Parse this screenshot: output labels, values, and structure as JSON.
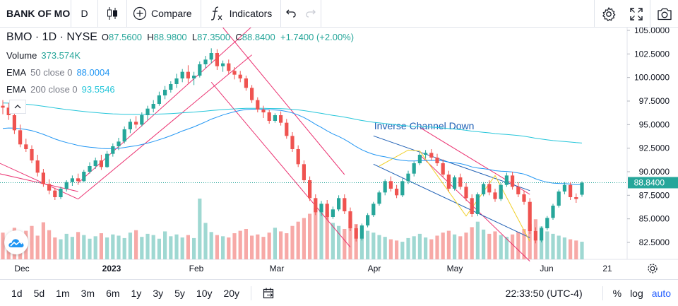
{
  "toolbar": {
    "symbol": "BANK OF MONTREAL",
    "interval": "D",
    "compare_label": "Compare",
    "indicators_label": "Indicators"
  },
  "legend": {
    "title": "BMO · 1D · NYSE",
    "open_label": "O",
    "open": "87.5600",
    "high_label": "H",
    "high": "88.9800",
    "low_label": "L",
    "low": "87.3500",
    "close_label": "C",
    "close": "88.8400",
    "change": "+1.7400 (+2.00%)",
    "volume_label": "Volume",
    "volume": "373.574K",
    "ema50_label": "EMA",
    "ema50_params": "50 close 0",
    "ema50_value": "88.0004",
    "ema200_label": "EMA",
    "ema200_params": "200 close 0",
    "ema200_value": "93.5546"
  },
  "colors": {
    "up": "#26a69a",
    "down": "#ef5350",
    "up_volume": "#9fd8d2",
    "down_volume": "#f7a9a7",
    "ema50": "#2196f3",
    "ema200": "#26c6da",
    "channel": "#e91e63",
    "inverse_channel": "#1e5fb4",
    "pattern": "#f0d02a",
    "accent": "#2962ff"
  },
  "chart_data": {
    "type": "candlestick",
    "y_axis_ticks": [
      "105.0000",
      "102.5000",
      "100.0000",
      "97.5000",
      "95.0000",
      "92.5000",
      "90.0000",
      "87.5000",
      "85.0000",
      "82.5000"
    ],
    "ylim": [
      80.7,
      105.3
    ],
    "last_price_label": "88.8400",
    "last_price": 88.84,
    "x_axis_labels": [
      "Dec",
      "2023",
      "Feb",
      "Mar",
      "Apr",
      "May",
      "Jun",
      "21"
    ],
    "annotation": "Inverse Channel Down",
    "candles": [
      [
        97.0,
        97.6,
        96.1,
        96.8
      ],
      [
        96.8,
        97.3,
        95.5,
        96.0
      ],
      [
        96.0,
        96.4,
        94.0,
        94.4
      ],
      [
        94.4,
        95.0,
        92.6,
        92.9
      ],
      [
        92.9,
        93.5,
        92.1,
        92.4
      ],
      [
        92.4,
        92.8,
        90.9,
        91.2
      ],
      [
        91.2,
        91.8,
        89.5,
        89.9
      ],
      [
        89.9,
        90.3,
        88.4,
        88.7
      ],
      [
        88.7,
        89.2,
        87.6,
        88.0
      ],
      [
        88.0,
        88.3,
        87.0,
        87.3
      ],
      [
        87.3,
        88.4,
        87.1,
        88.2
      ],
      [
        88.2,
        89.1,
        87.9,
        88.9
      ],
      [
        88.9,
        89.6,
        88.5,
        89.3
      ],
      [
        89.3,
        89.8,
        88.6,
        89.0
      ],
      [
        89.0,
        90.2,
        88.9,
        90.0
      ],
      [
        90.0,
        91.0,
        89.8,
        90.6
      ],
      [
        90.6,
        91.5,
        90.3,
        91.2
      ],
      [
        91.2,
        91.8,
        90.2,
        90.5
      ],
      [
        90.5,
        92.2,
        90.4,
        91.9
      ],
      [
        91.9,
        93.0,
        91.6,
        92.7
      ],
      [
        92.7,
        93.6,
        92.3,
        93.2
      ],
      [
        93.2,
        94.8,
        93.0,
        94.5
      ],
      [
        94.5,
        95.6,
        94.1,
        95.3
      ],
      [
        95.3,
        95.9,
        94.6,
        95.0
      ],
      [
        95.0,
        96.3,
        94.8,
        96.0
      ],
      [
        96.0,
        97.0,
        95.5,
        96.7
      ],
      [
        96.7,
        97.6,
        96.3,
        97.2
      ],
      [
        97.2,
        98.5,
        97.0,
        98.1
      ],
      [
        98.1,
        99.1,
        97.7,
        98.7
      ],
      [
        98.7,
        99.6,
        98.4,
        99.3
      ],
      [
        99.3,
        100.4,
        98.9,
        99.9
      ],
      [
        99.9,
        100.9,
        99.5,
        100.6
      ],
      [
        100.6,
        101.3,
        99.4,
        99.9
      ],
      [
        99.9,
        100.6,
        99.2,
        100.2
      ],
      [
        100.2,
        101.7,
        100.0,
        101.4
      ],
      [
        101.4,
        102.3,
        101.0,
        101.9
      ],
      [
        101.9,
        103.1,
        101.5,
        102.6
      ],
      [
        102.6,
        103.0,
        100.8,
        101.2
      ],
      [
        101.2,
        101.8,
        100.6,
        101.5
      ],
      [
        101.5,
        101.9,
        100.4,
        100.7
      ],
      [
        100.7,
        101.1,
        99.8,
        100.3
      ],
      [
        100.3,
        100.7,
        99.5,
        99.9
      ],
      [
        99.9,
        100.2,
        98.6,
        98.9
      ],
      [
        98.9,
        99.2,
        97.3,
        97.6
      ],
      [
        97.6,
        97.9,
        96.3,
        96.6
      ],
      [
        96.6,
        97.0,
        95.7,
        96.3
      ],
      [
        96.3,
        96.6,
        95.1,
        95.4
      ],
      [
        95.4,
        96.2,
        95.2,
        96.0
      ],
      [
        96.0,
        96.4,
        94.9,
        95.2
      ],
      [
        95.2,
        95.6,
        93.5,
        93.8
      ],
      [
        93.8,
        94.2,
        92.1,
        92.4
      ],
      [
        92.4,
        92.8,
        90.5,
        90.8
      ],
      [
        90.8,
        91.2,
        88.8,
        89.1
      ],
      [
        89.1,
        89.5,
        86.9,
        87.2
      ],
      [
        87.2,
        87.6,
        85.4,
        85.7
      ],
      [
        85.7,
        86.9,
        85.3,
        86.6
      ],
      [
        86.6,
        87.0,
        84.9,
        85.2
      ],
      [
        85.2,
        86.3,
        85.0,
        86.0
      ],
      [
        86.0,
        87.5,
        85.8,
        87.2
      ],
      [
        87.2,
        87.6,
        85.5,
        85.8
      ],
      [
        85.8,
        86.2,
        83.7,
        84.0
      ],
      [
        84.0,
        84.4,
        82.6,
        82.9
      ],
      [
        82.9,
        84.5,
        82.7,
        84.3
      ],
      [
        84.3,
        85.6,
        84.1,
        85.4
      ],
      [
        85.4,
        86.8,
        85.2,
        86.6
      ],
      [
        86.6,
        88.0,
        86.4,
        87.8
      ],
      [
        87.8,
        89.2,
        87.5,
        89.0
      ],
      [
        89.0,
        89.5,
        87.9,
        88.2
      ],
      [
        88.2,
        88.6,
        87.2,
        87.5
      ],
      [
        87.5,
        89.3,
        87.3,
        89.0
      ],
      [
        89.0,
        90.1,
        88.7,
        89.8
      ],
      [
        89.8,
        91.1,
        89.5,
        90.9
      ],
      [
        90.9,
        92.0,
        90.7,
        91.8
      ],
      [
        91.8,
        92.3,
        91.4,
        92.0
      ],
      [
        92.0,
        92.4,
        91.2,
        91.5
      ],
      [
        91.5,
        91.9,
        90.6,
        90.9
      ],
      [
        90.9,
        91.3,
        89.4,
        89.7
      ],
      [
        89.7,
        90.1,
        87.9,
        88.2
      ],
      [
        88.2,
        89.6,
        88.0,
        89.4
      ],
      [
        89.4,
        89.8,
        88.1,
        88.4
      ],
      [
        88.4,
        88.8,
        86.9,
        87.2
      ],
      [
        87.2,
        87.6,
        85.2,
        85.5
      ],
      [
        85.5,
        87.8,
        85.3,
        87.6
      ],
      [
        87.6,
        88.9,
        87.4,
        88.7
      ],
      [
        88.7,
        89.1,
        87.5,
        87.8
      ],
      [
        87.8,
        88.2,
        86.8,
        87.1
      ],
      [
        87.1,
        88.8,
        86.9,
        88.6
      ],
      [
        88.6,
        89.9,
        88.4,
        89.6
      ],
      [
        89.6,
        90.0,
        88.1,
        88.4
      ],
      [
        88.4,
        88.9,
        87.3,
        87.6
      ],
      [
        87.6,
        88.0,
        86.5,
        86.8
      ],
      [
        86.8,
        87.2,
        83.4,
        83.7
      ],
      [
        83.7,
        84.1,
        82.4,
        82.7
      ],
      [
        82.7,
        84.2,
        82.5,
        84.0
      ],
      [
        84.0,
        85.3,
        83.8,
        85.1
      ],
      [
        85.1,
        86.6,
        84.9,
        86.4
      ],
      [
        86.4,
        88.1,
        86.2,
        87.9
      ],
      [
        87.9,
        88.9,
        87.6,
        88.6
      ],
      [
        88.6,
        88.9,
        87.0,
        87.3
      ],
      [
        87.3,
        87.7,
        86.7,
        87.1
      ],
      [
        87.56,
        88.98,
        87.35,
        88.84
      ]
    ],
    "volume": [
      0.44,
      0.38,
      0.52,
      0.41,
      0.47,
      0.55,
      0.39,
      0.61,
      0.48,
      0.36,
      0.33,
      0.42,
      0.37,
      0.45,
      0.4,
      0.34,
      0.38,
      0.43,
      0.36,
      0.41,
      0.39,
      0.35,
      0.44,
      0.48,
      0.37,
      0.42,
      0.4,
      0.34,
      0.46,
      0.38,
      0.41,
      0.36,
      0.4,
      0.35,
      1.0,
      0.6,
      0.45,
      0.4,
      0.38,
      0.36,
      0.43,
      0.47,
      0.5,
      0.39,
      0.41,
      0.37,
      0.44,
      0.52,
      0.46,
      0.43,
      0.55,
      0.62,
      0.68,
      0.75,
      0.85,
      0.82,
      0.78,
      0.6,
      0.55,
      0.5,
      0.66,
      0.58,
      0.52,
      0.47,
      0.44,
      0.4,
      0.37,
      0.33,
      0.31,
      0.29,
      0.35,
      0.38,
      0.42,
      0.36,
      0.33,
      0.39,
      0.44,
      0.47,
      0.41,
      0.38,
      0.44,
      0.53,
      0.62,
      0.49,
      0.42,
      0.46,
      0.4,
      0.37,
      0.41,
      0.45,
      0.5,
      0.58,
      0.66,
      0.54,
      0.46,
      0.42,
      0.39,
      0.36,
      0.33,
      0.31,
      0.29
    ]
  },
  "bottombar": {
    "ranges": [
      "1d",
      "5d",
      "1m",
      "3m",
      "6m",
      "1y",
      "3y",
      "5y",
      "10y",
      "20y"
    ],
    "time": "22:33:50 (UTC-4)",
    "percent_label": "%",
    "log_label": "log",
    "auto_label": "auto"
  }
}
